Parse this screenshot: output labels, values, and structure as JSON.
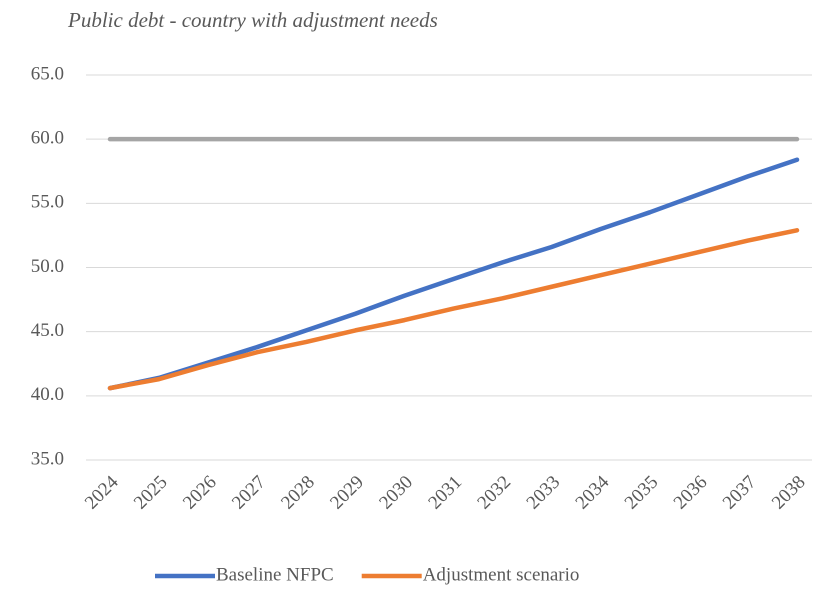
{
  "chart_data": {
    "type": "line",
    "title": "Public debt - country with adjustment needs",
    "categories": [
      "2024",
      "2025",
      "2026",
      "2027",
      "2028",
      "2029",
      "2030",
      "2031",
      "2032",
      "2033",
      "2034",
      "2035",
      "2036",
      "2037",
      "2038"
    ],
    "series": [
      {
        "color": "#a5a5a5",
        "values": [
          60,
          60,
          60,
          60,
          60,
          60,
          60,
          60,
          60,
          60,
          60,
          60,
          60,
          60,
          60
        ]
      },
      {
        "name": "Baseline NFPC",
        "color": "#4472c4",
        "values": [
          40.6,
          41.4,
          42.6,
          43.8,
          45.1,
          46.4,
          47.8,
          49.1,
          50.4,
          51.6,
          53.0,
          54.3,
          55.7,
          57.1,
          58.4
        ]
      },
      {
        "name": "Adjustment scenario",
        "color": "#ed7d31",
        "values": [
          40.6,
          41.3,
          42.4,
          43.4,
          44.2,
          45.1,
          45.9,
          46.8,
          47.6,
          48.5,
          49.4,
          50.3,
          51.2,
          52.1,
          52.9
        ]
      }
    ],
    "ylim": [
      35,
      65
    ],
    "yticks": [
      {
        "value": 35,
        "label": "35.0"
      },
      {
        "value": 40,
        "label": "40.0"
      },
      {
        "value": 45,
        "label": "45.0"
      },
      {
        "value": 50,
        "label": "50.0"
      },
      {
        "value": 55,
        "label": "55.0"
      },
      {
        "value": 60,
        "label": "60.0"
      },
      {
        "value": 65,
        "label": "65.0"
      }
    ],
    "grid": true,
    "legend": "bottom"
  }
}
